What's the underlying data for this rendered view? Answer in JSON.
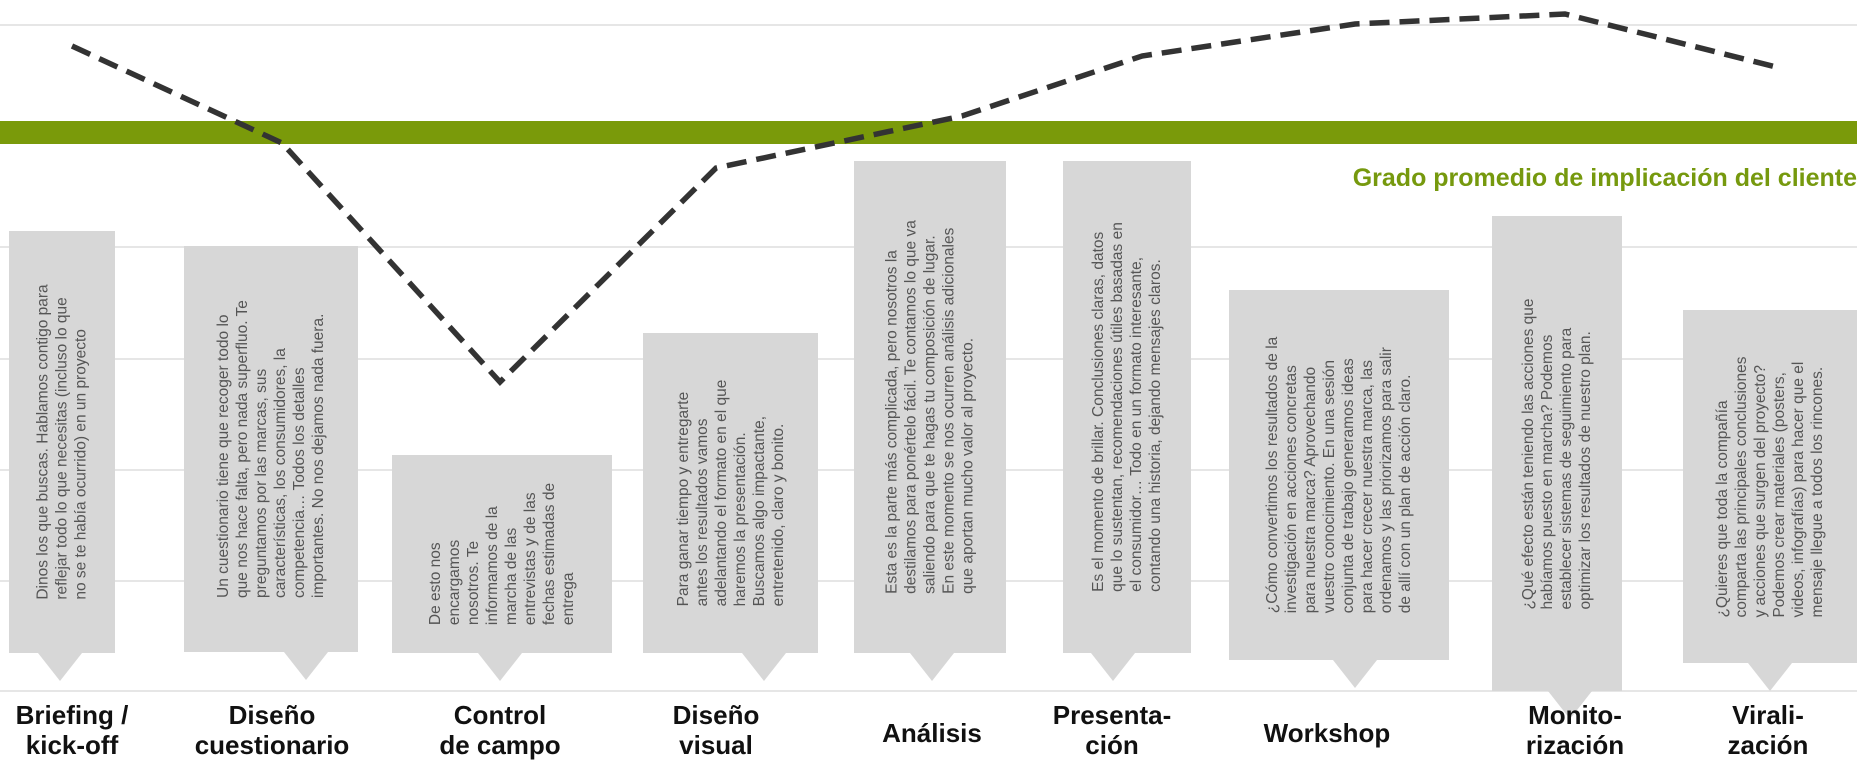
{
  "legend": {
    "label": "Grado promedio de implicación del cliente"
  },
  "colors": {
    "band": "#7a9a0a",
    "legend_text": "#76990e",
    "callout_bg": "#d7d7d7",
    "callout_text": "#555555",
    "trend_line": "#333333",
    "gridline": "#e6e6e6"
  },
  "stages": [
    {
      "label": "Briefing /\nkick-off",
      "description": "Dinos los que buscas. Hablamos contigo para\nreflejar todo lo que necesitas (incluso lo que\nno se te había ocurrido) en un proyecto"
    },
    {
      "label": "Diseño\ncuestionario",
      "description": "Un cuestionario tiene que recoger todo lo\nque nos hace falta, pero nada superfluo. Te\npreguntamos por las marcas, sus\ncaracterísticas, los consumidores, la\ncompetencia… Todos los detalles\nimportantes. No nos dejamos nada fuera."
    },
    {
      "label": "Control\nde campo",
      "description": "De esto nos\nencargamos\nnosotros. Te\ninformamos de la\nmarcha de las\nentrevistas y de las\nfechas estimadas de\nentrega"
    },
    {
      "label": "Diseño\nvisual",
      "description": "Para ganar tiempo y entregarte\nantes los resultados vamos\nadelantando el formato en el que\nharemos la presentación.\nBuscamos algo impactante,\nentretenido, claro y bonito."
    },
    {
      "label": "Análisis",
      "description": "Esta es la parte más complicada, pero nosotros la\ndestilamos para ponértelo fácil. Te contamos lo que va\nsaliendo para que te hagas tu composición de lugar.\nEn este momento se nos ocurren análisis adicionales\nque aportan mucho valor al proyecto."
    },
    {
      "label": "Presenta-\nción",
      "description": "Es el momento de brillar. Conclusiones claras, datos\nque lo sustentan, recomendaciones útiles basadas en\nel consumidor… Todo en un formato interesante,\ncontando una historia, dejando mensajes claros."
    },
    {
      "label": "Workshop",
      "description": "¿Cómo convertimos los resultados de la\ninvestigación en acciones concretas\npara nuestra marca? Aprovechando\nvuestro conocimiento. En una sesión\nconjunta de trabajo generamos ideas\npara hacer crecer nuestra marca, las\nordenamos y las priorizamos para salir\nde allí con un plan de acción claro."
    },
    {
      "label": "Monito-\nrización",
      "description": "¿Qué efecto están teniendo las acciones que\nhabíamos puesto en marcha? Podemos\nestablecer sistemas de seguimiento para\noptimizar los resultados de nuestro plan."
    },
    {
      "label": "Virali-\nzación",
      "description": "¿Quieres que toda la compañía\ncomparta las principales conclusiones\ny acciones que surgen del proyecto?\nPodemos crear materiales (posters,\nvideos, infografías) para hacer que el\nmensaje llegue a todos los rincones."
    }
  ]
}
